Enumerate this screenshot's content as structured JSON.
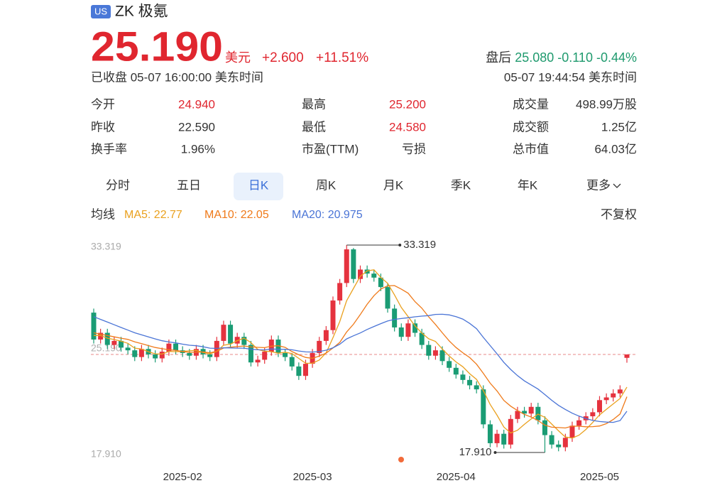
{
  "header": {
    "market": "US",
    "name": "ZK 极氪",
    "price": "25.190",
    "currency": "美元",
    "change": "+2.600",
    "change_pct": "+11.51%",
    "status": "已收盘 05-07 16:00:00 美东时间",
    "after_label": "盘后",
    "after_price": "25.080",
    "after_change": "-0.110",
    "after_pct": "-0.44%",
    "after_time": "05-07 19:44:54 美东时间",
    "up_color": "#e0262f",
    "down_color": "#1f9a6e"
  },
  "stats": [
    [
      {
        "label": "今开",
        "value": "24.940",
        "color": "#e0262f"
      },
      {
        "label": "最高",
        "value": "25.200",
        "color": "#e0262f"
      },
      {
        "label": "成交量",
        "value": "498.99万股",
        "color": "#333333"
      }
    ],
    [
      {
        "label": "昨收",
        "value": "22.590",
        "color": "#333333"
      },
      {
        "label": "最低",
        "value": "24.580",
        "color": "#e0262f"
      },
      {
        "label": "成交额",
        "value": "1.25亿",
        "color": "#333333"
      }
    ],
    [
      {
        "label": "换手率",
        "value": "1.96%",
        "color": "#333333"
      },
      {
        "label": "市盈(TTM)",
        "value": "亏损",
        "color": "#333333"
      },
      {
        "label": "总市值",
        "value": "64.03亿",
        "color": "#333333"
      }
    ]
  ],
  "tabs": [
    "分时",
    "五日",
    "日K",
    "周K",
    "月K",
    "季K",
    "年K",
    "更多"
  ],
  "active_tab": 2,
  "ma_label": "均线",
  "adjust": "不复权",
  "chart_data": {
    "type": "candlestick",
    "up_color": "#e5323e",
    "down_color": "#1a9c74",
    "open": [
      28.3,
      26.3,
      26.8,
      25.9,
      26.2,
      25.7,
      25.5,
      25.0,
      25.6,
      25.2,
      24.9,
      25.4,
      26.0,
      25.5,
      25.3,
      25.1,
      25.6,
      25.2,
      25.0,
      26.2,
      27.4,
      26.0,
      26.5,
      25.9,
      24.6,
      24.8,
      25.4,
      26.3,
      25.3,
      25.0,
      24.3,
      23.6,
      24.5,
      25.3,
      26.2,
      27.0,
      29.2,
      30.5,
      33.0,
      30.8,
      31.5,
      31.2,
      30.9,
      30.2,
      28.6,
      27.2,
      26.5,
      27.5,
      26.8,
      25.9,
      25.1,
      25.5,
      24.7,
      24.2,
      23.7,
      23.3,
      22.9,
      22.6,
      20.0,
      18.6,
      19.3,
      18.5,
      20.4,
      21.0,
      20.8,
      21.3,
      20.3,
      19.2,
      18.5,
      18.3,
      19.0,
      19.9,
      20.3,
      20.6,
      20.9,
      21.8,
      22.0,
      22.3,
      24.94
    ],
    "high": [
      28.6,
      27.1,
      27.1,
      26.5,
      26.5,
      26.0,
      25.8,
      25.9,
      25.9,
      25.5,
      25.7,
      26.3,
      26.3,
      25.8,
      25.6,
      25.9,
      25.9,
      25.5,
      26.5,
      27.7,
      27.7,
      26.8,
      26.8,
      26.2,
      25.1,
      25.7,
      26.6,
      26.6,
      25.6,
      25.3,
      24.6,
      24.8,
      25.6,
      26.5,
      27.3,
      29.5,
      30.8,
      33.319,
      33.1,
      31.8,
      31.8,
      31.5,
      31.2,
      30.5,
      28.9,
      27.5,
      27.8,
      27.8,
      27.1,
      26.2,
      25.8,
      25.8,
      25.0,
      24.5,
      24.0,
      23.6,
      23.2,
      22.9,
      20.3,
      19.6,
      19.6,
      20.7,
      21.3,
      21.3,
      21.6,
      21.6,
      20.6,
      19.5,
      18.8,
      19.3,
      20.2,
      20.6,
      20.9,
      21.2,
      22.1,
      22.3,
      22.6,
      22.9,
      25.2
    ],
    "low": [
      26.0,
      26.0,
      25.6,
      25.6,
      25.4,
      25.2,
      24.7,
      24.7,
      24.9,
      24.6,
      24.6,
      25.1,
      25.2,
      25.0,
      24.8,
      24.8,
      24.9,
      24.7,
      24.7,
      25.9,
      25.7,
      25.7,
      25.6,
      24.3,
      24.3,
      24.5,
      25.1,
      25.0,
      24.7,
      24.0,
      23.3,
      23.3,
      24.2,
      25.0,
      25.9,
      26.7,
      28.9,
      30.2,
      30.5,
      30.5,
      30.9,
      30.6,
      29.9,
      28.3,
      26.9,
      26.2,
      26.2,
      26.5,
      25.6,
      24.8,
      24.8,
      24.4,
      23.9,
      23.4,
      23.0,
      22.6,
      22.3,
      19.7,
      18.3,
      18.3,
      18.2,
      18.2,
      20.1,
      20.5,
      20.5,
      20.0,
      17.91,
      18.2,
      18.0,
      18.0,
      18.7,
      19.6,
      20.0,
      20.3,
      20.6,
      21.5,
      21.7,
      22.0,
      24.58
    ],
    "close": [
      26.3,
      26.8,
      25.9,
      26.2,
      25.7,
      25.5,
      25.0,
      25.6,
      25.2,
      24.9,
      25.4,
      26.0,
      25.5,
      25.3,
      25.1,
      25.6,
      25.2,
      25.0,
      26.2,
      27.4,
      26.0,
      26.5,
      25.9,
      24.6,
      24.8,
      25.4,
      26.3,
      25.3,
      25.0,
      24.3,
      23.6,
      24.5,
      25.3,
      26.2,
      27.0,
      29.2,
      30.5,
      33.0,
      30.8,
      31.5,
      31.2,
      30.9,
      30.2,
      28.6,
      27.2,
      26.5,
      27.5,
      26.8,
      25.9,
      25.1,
      25.5,
      24.7,
      24.2,
      23.7,
      23.3,
      22.9,
      22.6,
      20.0,
      18.6,
      19.3,
      18.5,
      20.4,
      21.0,
      20.8,
      21.3,
      20.3,
      19.2,
      18.5,
      18.3,
      19.0,
      19.9,
      20.3,
      20.6,
      20.9,
      21.8,
      22.0,
      22.3,
      22.59,
      25.19
    ],
    "series": [
      {
        "name": "MA5: 22.77",
        "color": "#eaa11f",
        "values": [
          26.6,
          26.6,
          26.4,
          26.3,
          26.18,
          26.02,
          25.66,
          25.6,
          25.4,
          25.24,
          25.22,
          25.42,
          25.4,
          25.42,
          25.46,
          25.5,
          25.34,
          25.24,
          25.42,
          25.88,
          25.96,
          26.22,
          26.4,
          26.08,
          25.56,
          25.44,
          25.4,
          25.28,
          25.36,
          25.26,
          24.9,
          24.54,
          24.54,
          24.78,
          25.32,
          26.44,
          27.64,
          29.18,
          30.1,
          31.0,
          31.4,
          31.48,
          30.92,
          30.48,
          29.62,
          28.68,
          28.0,
          27.32,
          26.78,
          26.36,
          26.16,
          25.6,
          25.08,
          24.64,
          24.28,
          23.76,
          23.34,
          22.5,
          21.48,
          20.68,
          19.8,
          19.36,
          19.56,
          20.0,
          20.4,
          20.76,
          20.52,
          20.02,
          19.52,
          19.06,
          18.98,
          19.2,
          19.62,
          20.14,
          20.7,
          21.12,
          21.52,
          21.92,
          22.77
        ]
      },
      {
        "name": "MA10: 22.05",
        "color": "#ef7a1a",
        "values": [
          26.8,
          26.7,
          26.6,
          26.5,
          26.4,
          26.31,
          26.13,
          26.0,
          25.85,
          25.71,
          25.62,
          25.54,
          25.5,
          25.41,
          25.35,
          25.36,
          25.38,
          25.32,
          25.42,
          25.67,
          25.73,
          25.78,
          25.82,
          25.75,
          25.72,
          25.7,
          25.81,
          25.84,
          25.72,
          25.41,
          25.17,
          24.97,
          24.91,
          25.07,
          25.29,
          25.67,
          26.09,
          26.86,
          27.44,
          28.16,
          28.92,
          29.56,
          30.05,
          30.29,
          30.31,
          30.04,
          29.74,
          29.12,
          28.63,
          27.99,
          27.42,
          26.8,
          26.2,
          25.71,
          25.32,
          24.96,
          24.47,
          23.79,
          23.06,
          22.48,
          21.78,
          21.35,
          21.03,
          20.74,
          20.54,
          20.28,
          19.94,
          19.79,
          19.76,
          19.73,
          19.87,
          19.86,
          19.82,
          19.83,
          19.88,
          20.05,
          20.36,
          20.77,
          22.05
        ]
      },
      {
        "name": "MA20: 20.975",
        "color": "#4a74d6",
        "values": [
          28.0,
          27.8,
          27.6,
          27.4,
          27.2,
          27.0,
          26.8,
          26.65,
          26.5,
          26.35,
          26.21,
          26.12,
          26.05,
          25.96,
          25.88,
          25.84,
          25.76,
          25.66,
          25.64,
          25.69,
          25.68,
          25.66,
          25.66,
          25.58,
          25.54,
          25.53,
          25.6,
          25.58,
          25.57,
          25.54,
          25.45,
          25.38,
          25.37,
          25.41,
          25.51,
          25.69,
          25.95,
          26.35,
          26.58,
          26.79,
          27.05,
          27.27,
          27.48,
          27.68,
          27.8,
          27.86,
          27.92,
          27.99,
          28.04,
          28.08,
          28.17,
          28.18,
          28.13,
          28.0,
          27.82,
          27.5,
          27.11,
          26.46,
          25.85,
          25.24,
          24.6,
          24.08,
          23.62,
          23.23,
          22.93,
          22.62,
          22.21,
          21.79,
          21.41,
          21.11,
          20.83,
          20.61,
          20.43,
          20.29,
          20.21,
          20.17,
          20.15,
          20.28,
          20.975
        ]
      }
    ],
    "ylim": [
      17.91,
      33.319
    ],
    "yticks": [
      {
        "value": 33.319,
        "label": "33.319"
      },
      {
        "value": 17.91,
        "label": "17.910"
      }
    ],
    "xticks": [
      {
        "value": 13,
        "label": "2025-02"
      },
      {
        "value": 32,
        "label": "2025-03"
      },
      {
        "value": 53,
        "label": "2025-04"
      },
      {
        "value": 74,
        "label": "2025-05"
      }
    ],
    "ref_line": {
      "value": 25.19,
      "label": "25.190",
      "color": "#e88a8a"
    },
    "high_label": {
      "value": 33.319,
      "label": "33.319"
    },
    "low_label": {
      "value": 17.91,
      "label": "17.910"
    }
  }
}
